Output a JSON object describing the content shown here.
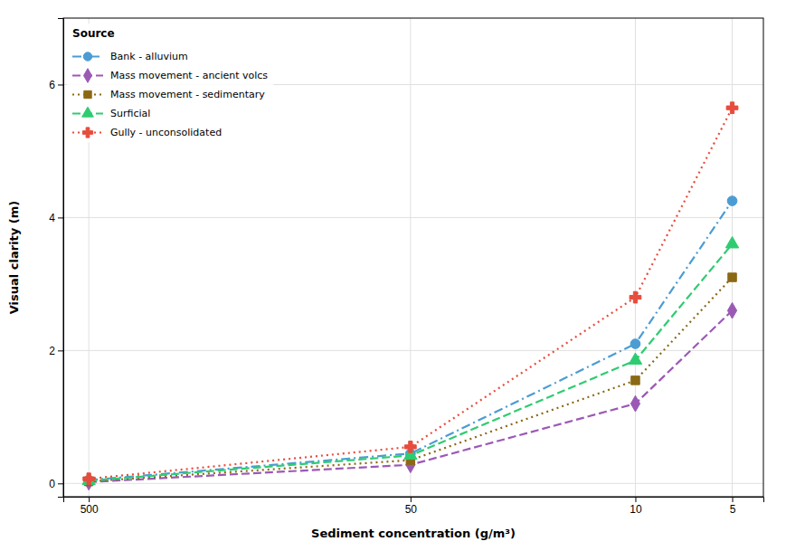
{
  "chart_data": {
    "type": "line",
    "xlabel": "Sediment concentration (g/m³)",
    "ylabel": "Visual clarity (m)",
    "legend_title": "Source",
    "x": [
      500,
      50,
      10,
      5
    ],
    "xlim": [
      600,
      4
    ],
    "xticks": [
      5,
      10,
      50,
      500
    ],
    "log": "x",
    "ylim": [
      -0.2,
      7
    ],
    "yticks": [
      0,
      2,
      4,
      6
    ],
    "grid": true,
    "legend": "upper left",
    "series": [
      {
        "name": "Bank - alluvium",
        "values": [
          0.05,
          0.45,
          2.1,
          4.25
        ],
        "color": "#4B9CD3",
        "line_style": "dashdot",
        "marker": "circle"
      },
      {
        "name": "Mass movement - ancient volcs",
        "values": [
          0.02,
          0.28,
          1.2,
          2.6
        ],
        "color": "#9B59B6",
        "line_style": "dashed",
        "marker": "diamond"
      },
      {
        "name": "Mass movement - sedimentary",
        "values": [
          0.03,
          0.35,
          1.55,
          3.1
        ],
        "color": "#8B6914",
        "line_style": "dotted",
        "marker": "square"
      },
      {
        "name": "Surficial",
        "values": [
          0.04,
          0.42,
          1.85,
          3.6
        ],
        "color": "#2ECC71",
        "line_style": "dashed",
        "marker": "triangle"
      },
      {
        "name": "Gully - unconsolidated",
        "values": [
          0.07,
          0.55,
          2.8,
          5.65
        ],
        "color": "#E74C3C",
        "line_style": "dotted",
        "marker": "plus"
      }
    ]
  }
}
